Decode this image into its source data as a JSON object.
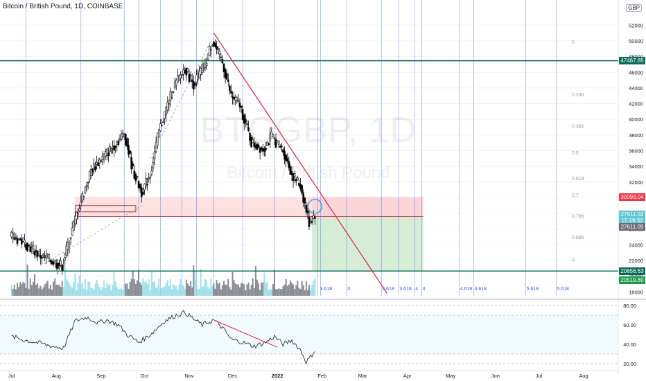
{
  "header": {
    "title": "Bitcoin / British Pound, 1D, COINBASE",
    "currency": "GBP"
  },
  "watermark": {
    "symbol": "BTCGBP, 1D",
    "name": "Bitcoin / British Pound"
  },
  "colors": {
    "up_candle": "#ffffff",
    "down_candle": "#000000",
    "trendline": "#e0284a",
    "support_resistance": "#0b6b5a",
    "fib_vertical": "#2962ff",
    "zone_red": "#f7c6cb",
    "zone_green": "#c8e6c9",
    "volume": "#89d8e6"
  },
  "price_badges": [
    {
      "label": "47467.85",
      "value": 47467.85,
      "bg": "#0b6b5a"
    },
    {
      "label": "30093.04",
      "value": 30093.04,
      "bg": "#f23645"
    },
    {
      "label": "27911.03",
      "value": 27911.03,
      "bg": "#5fc6d6"
    },
    {
      "label": "15:19:32",
      "value": 27100,
      "bg": "#5fc6d6"
    },
    {
      "label": "27611.09",
      "value": 26300,
      "bg": "#6a6d78"
    },
    {
      "label": "20656.63",
      "value": 20656.63,
      "bg": "#0b6b5a"
    },
    {
      "label": "20519.80",
      "value": 19500,
      "bg": "#1a9a4a"
    }
  ],
  "chart_data": {
    "type": "candlestick",
    "title": "Bitcoin / British Pound, 1D, COINBASE",
    "x_ticks": [
      "Jul",
      "Aug",
      "Sep",
      "Oct",
      "Nov",
      "Dec",
      "2022",
      "Feb",
      "Mar",
      "Apr",
      "May",
      "Jun",
      "Jul",
      "Aug"
    ],
    "x_tick_index": [
      0,
      31,
      62,
      92,
      123,
      153,
      184,
      215,
      243,
      274,
      304,
      335,
      365,
      396
    ],
    "y_ticks": [
      18000,
      20000,
      22000,
      24000,
      26000,
      28000,
      30000,
      32000,
      34000,
      36000,
      38000,
      40000,
      42000,
      44000,
      46000,
      48000,
      50000,
      52000
    ],
    "y_top_label": "54000",
    "ylim": [
      17500,
      54500
    ],
    "last_index": 210,
    "ohlc_keypoints": [
      {
        "day": 0,
        "close": 25000
      },
      {
        "day": 8,
        "close": 24400
      },
      {
        "day": 20,
        "close": 22600
      },
      {
        "day": 35,
        "close": 21300
      },
      {
        "day": 45,
        "close": 27900
      },
      {
        "day": 55,
        "close": 33500
      },
      {
        "day": 62,
        "close": 34900
      },
      {
        "day": 70,
        "close": 36500
      },
      {
        "day": 78,
        "close": 38200
      },
      {
        "day": 84,
        "close": 33500
      },
      {
        "day": 90,
        "close": 30700
      },
      {
        "day": 96,
        "close": 33000
      },
      {
        "day": 102,
        "close": 38500
      },
      {
        "day": 112,
        "close": 44000
      },
      {
        "day": 120,
        "close": 46500
      },
      {
        "day": 126,
        "close": 44500
      },
      {
        "day": 134,
        "close": 47000
      },
      {
        "day": 139,
        "close": 50000
      },
      {
        "day": 146,
        "close": 47200
      },
      {
        "day": 152,
        "close": 43000
      },
      {
        "day": 158,
        "close": 41800
      },
      {
        "day": 166,
        "close": 37000
      },
      {
        "day": 174,
        "close": 36200
      },
      {
        "day": 180,
        "close": 37800
      },
      {
        "day": 188,
        "close": 36000
      },
      {
        "day": 194,
        "close": 33000
      },
      {
        "day": 200,
        "close": 31500
      },
      {
        "day": 206,
        "close": 26800
      },
      {
        "day": 210,
        "close": 27900
      }
    ],
    "horizontal_lines": [
      47467.85,
      20656.63
    ],
    "trendline": {
      "from": {
        "day": 140,
        "price": 51000
      },
      "to": {
        "day": 260,
        "price": 17800
      }
    },
    "fib_levels": [
      {
        "label": "0",
        "price": 49900
      },
      {
        "label": "0.236",
        "price": 43200
      },
      {
        "label": "0.382",
        "price": 39200
      },
      {
        "label": "0.5",
        "price": 35800
      },
      {
        "label": "0.618",
        "price": 32500
      },
      {
        "label": "0.7",
        "price": 30400
      },
      {
        "label": "0.786",
        "price": 27700
      },
      {
        "label": "0.886",
        "price": 25000
      },
      {
        "label": "1",
        "price": 22200
      }
    ],
    "fib_vertical_labels": [
      {
        "label": "3.618",
        "day": 213
      },
      {
        "label": "3",
        "day": 232
      },
      {
        "label": "3.618",
        "day": 256
      },
      {
        "label": "3.618",
        "day": 268
      },
      {
        "label": "4",
        "day": 279
      },
      {
        "label": "4",
        "day": 284
      },
      {
        "label": "4.618",
        "day": 310
      },
      {
        "label": "4.618",
        "day": 320
      },
      {
        "label": "5.618",
        "day": 356
      },
      {
        "label": "5.618",
        "day": 377
      }
    ],
    "short_position": {
      "start_day": 208,
      "end_day": 285,
      "stop": 30093.04,
      "entry": 27611.09,
      "target": 20656.63
    },
    "rsi": {
      "y_ticks": [
        20.0,
        40.0,
        60.0,
        80.0
      ],
      "y_labels": [
        "20.00",
        "40.00",
        "60.00",
        "80.00"
      ],
      "band": [
        30,
        70
      ],
      "ylim": [
        15,
        85
      ],
      "keypoints": [
        {
          "day": 0,
          "value": 48
        },
        {
          "day": 10,
          "value": 44
        },
        {
          "day": 20,
          "value": 41
        },
        {
          "day": 28,
          "value": 38
        },
        {
          "day": 36,
          "value": 36
        },
        {
          "day": 44,
          "value": 64
        },
        {
          "day": 52,
          "value": 68
        },
        {
          "day": 60,
          "value": 62
        },
        {
          "day": 66,
          "value": 65
        },
        {
          "day": 74,
          "value": 60
        },
        {
          "day": 80,
          "value": 50
        },
        {
          "day": 88,
          "value": 42
        },
        {
          "day": 96,
          "value": 50
        },
        {
          "day": 106,
          "value": 64
        },
        {
          "day": 114,
          "value": 70
        },
        {
          "day": 120,
          "value": 73
        },
        {
          "day": 126,
          "value": 66
        },
        {
          "day": 132,
          "value": 60
        },
        {
          "day": 140,
          "value": 65
        },
        {
          "day": 146,
          "value": 57
        },
        {
          "day": 152,
          "value": 45
        },
        {
          "day": 160,
          "value": 42
        },
        {
          "day": 168,
          "value": 38
        },
        {
          "day": 176,
          "value": 42
        },
        {
          "day": 182,
          "value": 48
        },
        {
          "day": 188,
          "value": 40
        },
        {
          "day": 194,
          "value": 44
        },
        {
          "day": 200,
          "value": 34
        },
        {
          "day": 204,
          "value": 22
        },
        {
          "day": 207,
          "value": 27
        },
        {
          "day": 210,
          "value": 34
        }
      ]
    }
  }
}
